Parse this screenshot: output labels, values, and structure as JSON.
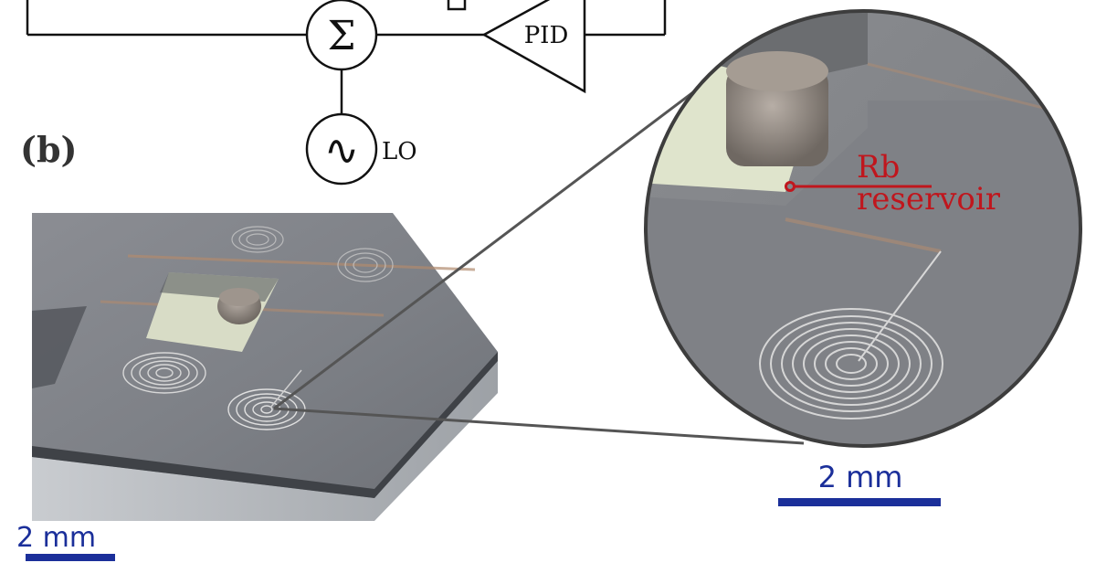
{
  "figure": {
    "panel_label": "(b)",
    "block_diagram": {
      "summing_symbol": "Σ",
      "controller_label": "PID",
      "oscillator_symbol": "∿",
      "oscillator_label": "LO"
    },
    "photo": {
      "scale_bar_label": "2 mm"
    },
    "zoom_inset": {
      "annotation_line1": "Rb",
      "annotation_line2": "reservoir",
      "scale_bar_label": "2 mm"
    },
    "colors": {
      "annotation": "#c0161d",
      "scale_bar": "#1b2f9a",
      "diagram_lines": "#111111"
    }
  }
}
